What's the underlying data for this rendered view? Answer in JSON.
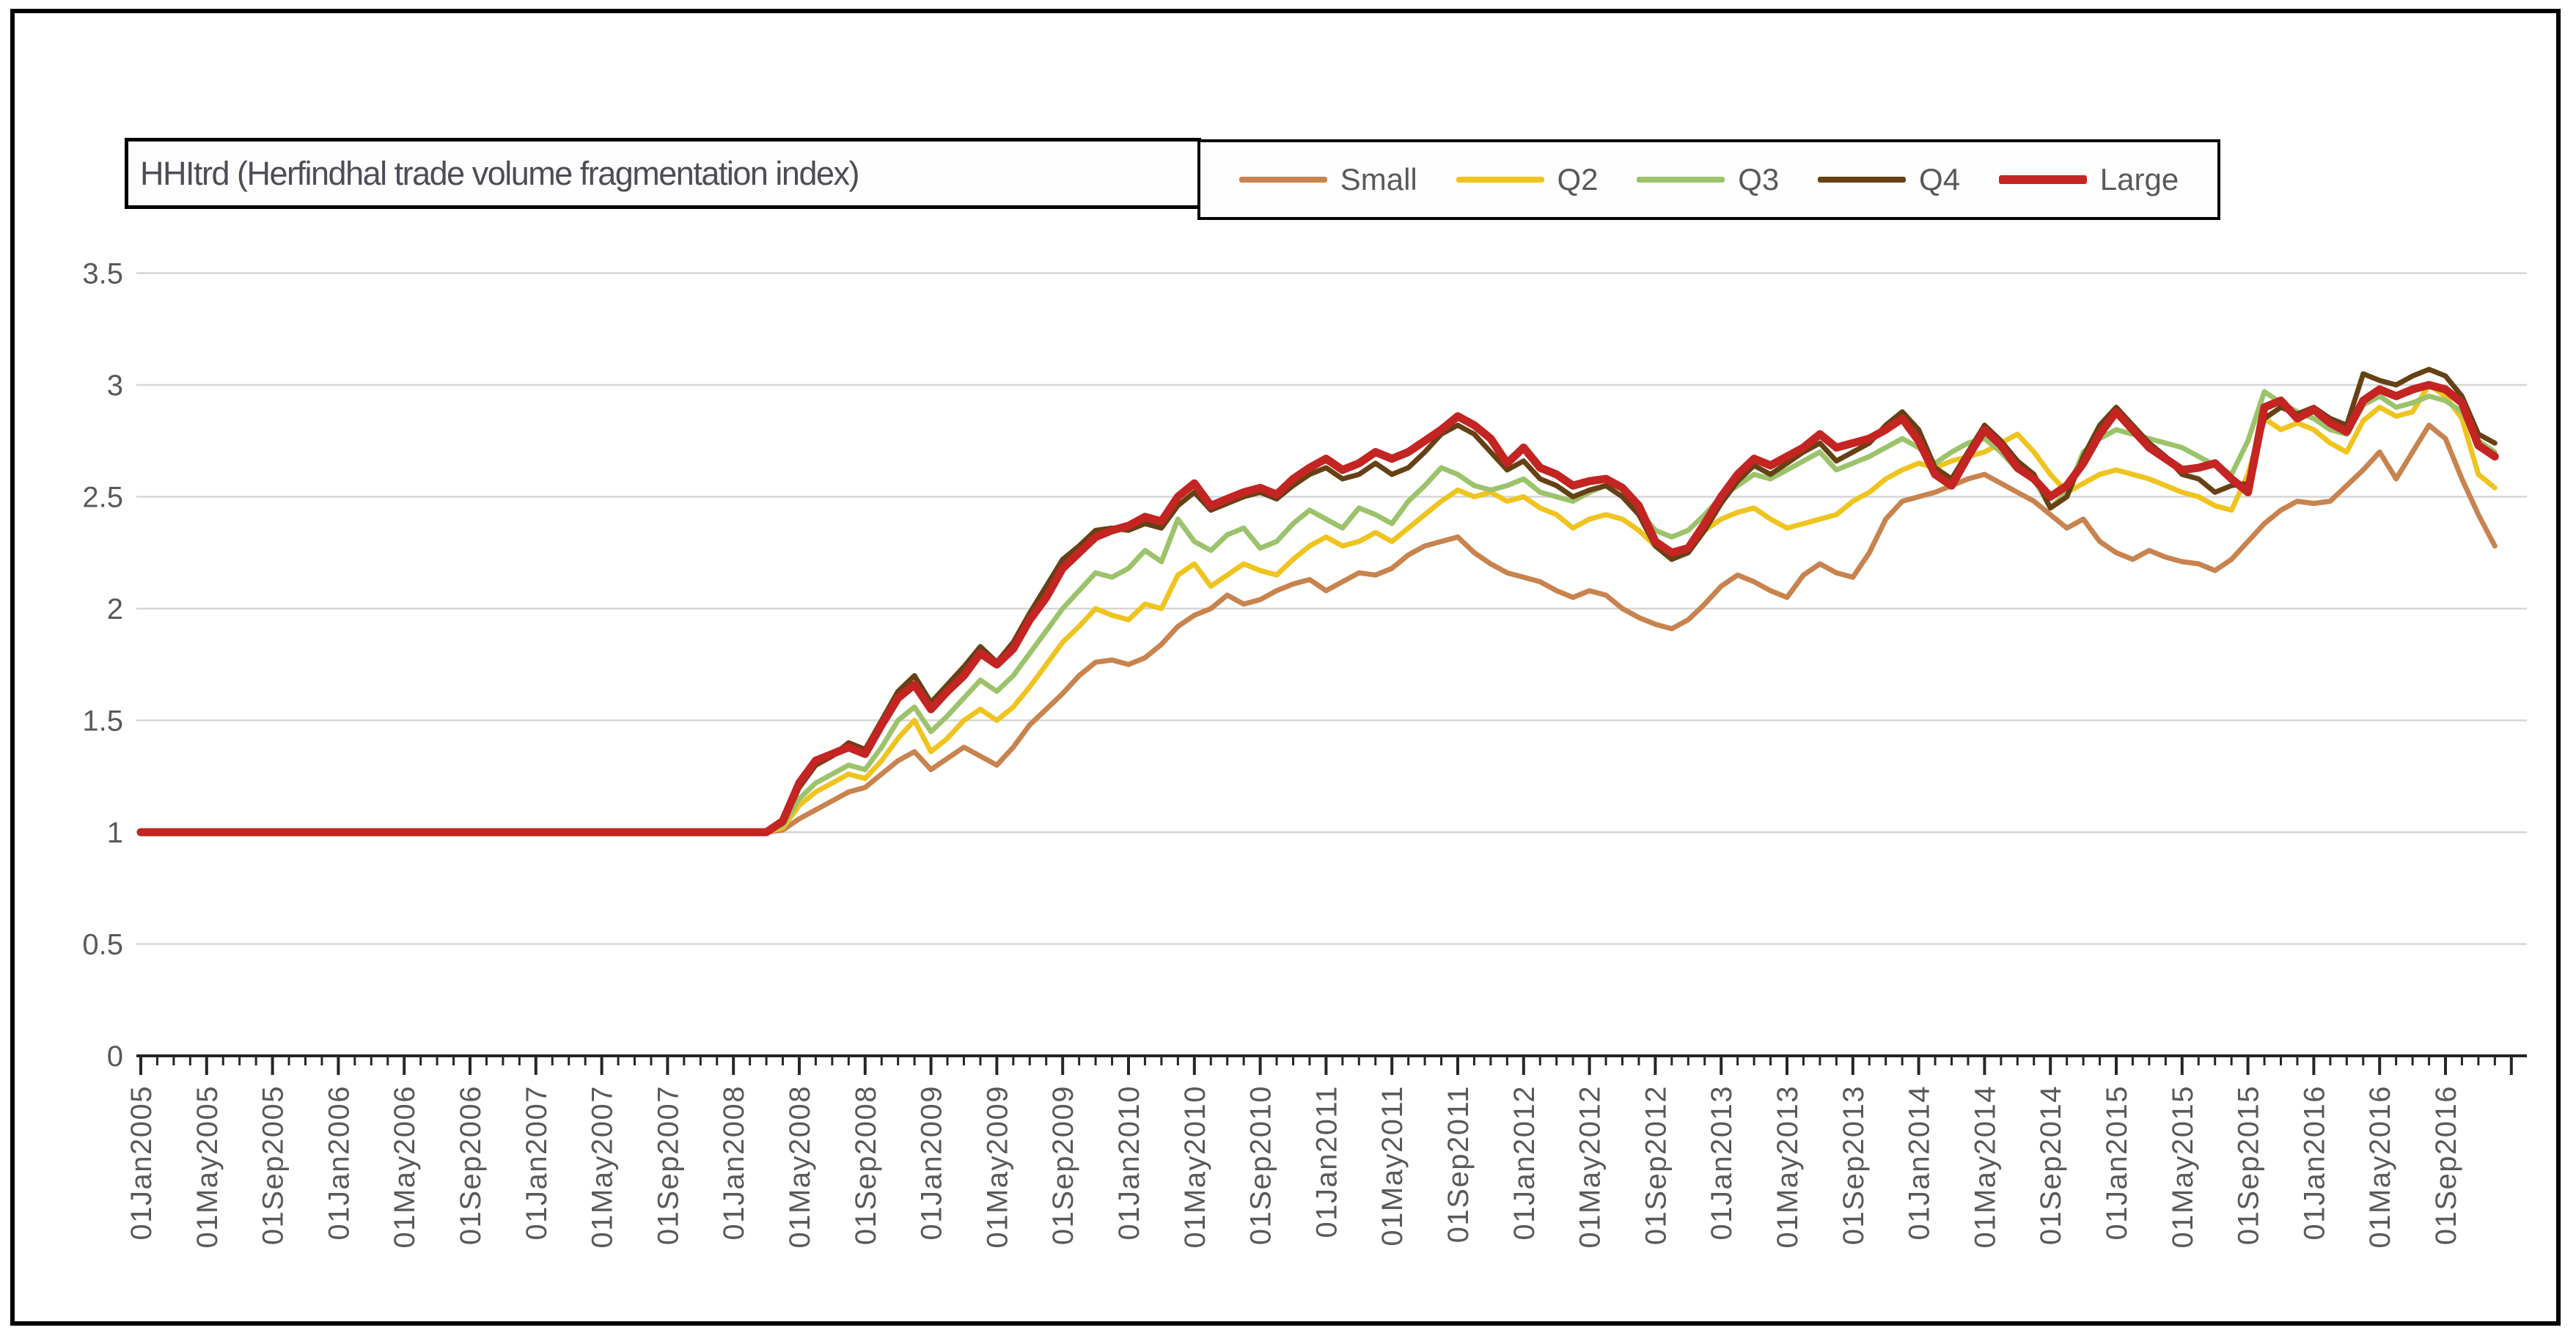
{
  "title": "HHItrd (Herfindhal trade volume fragmentation index)",
  "legend": {
    "position": "top-right",
    "items": [
      {
        "label": "Small",
        "color": "#c8834e",
        "thickness": 8
      },
      {
        "label": "Q2",
        "color": "#efc41f",
        "thickness": 8
      },
      {
        "label": "Q3",
        "color": "#9cc36b",
        "thickness": 8
      },
      {
        "label": "Q4",
        "color": "#654114",
        "thickness": 8
      },
      {
        "label": "Large",
        "color": "#c42422",
        "thickness": 12
      }
    ]
  },
  "axes": {
    "y_tick_labels": [
      "3.5",
      "3",
      "2.5",
      "2",
      "1.5",
      "1",
      "0.5",
      "0"
    ],
    "y_tick_values": [
      3.5,
      3,
      2.5,
      2,
      1.5,
      1,
      0.5,
      0
    ],
    "x_tick_labels": [
      "01Jan2005",
      "01May2005",
      "01Sep2005",
      "01Jan2006",
      "01May2006",
      "01Sep2006",
      "01Jan2007",
      "01May2007",
      "01Sep2007",
      "01Jan2008",
      "01May2008",
      "01Sep2008",
      "01Jan2009",
      "01May2009",
      "01Sep2009",
      "01Jan2010",
      "01May2010",
      "01Sep2010",
      "01Jan2011",
      "01May2011",
      "01Sep2011",
      "01Jan2012",
      "01May2012",
      "01Sep2012",
      "01Jan2013",
      "01May2013",
      "01Sep2013",
      "01Jan2014",
      "01May2014",
      "01Sep2014",
      "01Jan2015",
      "01May2015",
      "01Sep2015",
      "01Jan2016",
      "01May2016",
      "01Sep2016"
    ],
    "label_color": "#595959",
    "gridline_color": "#d6d6d6",
    "axis_color": "#262626"
  },
  "chart_data": {
    "type": "line",
    "title": "HHItrd (Herfindhal trade volume fragmentation index)",
    "x_start": "01Jan2005",
    "x_step_months": 1,
    "n_points": 144,
    "x_labels_shown_every_n_months": 4,
    "ylim": [
      0,
      3.5
    ],
    "y_tick_step": 0.5,
    "grid": true,
    "legend_position": "top-right",
    "series": [
      {
        "name": "Small",
        "color": "#c8834e",
        "width": 7,
        "values": [
          1,
          1,
          1,
          1,
          1,
          1,
          1,
          1,
          1,
          1,
          1,
          1,
          1,
          1,
          1,
          1,
          1,
          1,
          1,
          1,
          1,
          1,
          1,
          1,
          1,
          1,
          1,
          1,
          1,
          1,
          1,
          1,
          1,
          1,
          1,
          1,
          1,
          1,
          1,
          1.01,
          1.06,
          1.1,
          1.14,
          1.18,
          1.2,
          1.26,
          1.32,
          1.36,
          1.28,
          1.33,
          1.38,
          1.34,
          1.3,
          1.38,
          1.48,
          1.55,
          1.62,
          1.7,
          1.76,
          1.77,
          1.75,
          1.78,
          1.84,
          1.92,
          1.97,
          2.0,
          2.06,
          2.02,
          2.04,
          2.08,
          2.11,
          2.13,
          2.08,
          2.12,
          2.16,
          2.15,
          2.18,
          2.24,
          2.28,
          2.3,
          2.32,
          2.25,
          2.2,
          2.16,
          2.14,
          2.12,
          2.08,
          2.05,
          2.08,
          2.06,
          2.0,
          1.96,
          1.93,
          1.91,
          1.95,
          2.02,
          2.1,
          2.15,
          2.12,
          2.08,
          2.05,
          2.15,
          2.2,
          2.16,
          2.14,
          2.25,
          2.4,
          2.48,
          2.5,
          2.52,
          2.55,
          2.58,
          2.6,
          2.56,
          2.52,
          2.48,
          2.42,
          2.36,
          2.4,
          2.3,
          2.25,
          2.22,
          2.26,
          2.23,
          2.21,
          2.2,
          2.17,
          2.22,
          2.3,
          2.38,
          2.44,
          2.48,
          2.47,
          2.48,
          2.55,
          2.62,
          2.7,
          2.58,
          2.7,
          2.82,
          2.76,
          2.58,
          2.42,
          2.28
        ]
      },
      {
        "name": "Q2",
        "color": "#efc41f",
        "width": 7,
        "values": [
          1,
          1,
          1,
          1,
          1,
          1,
          1,
          1,
          1,
          1,
          1,
          1,
          1,
          1,
          1,
          1,
          1,
          1,
          1,
          1,
          1,
          1,
          1,
          1,
          1,
          1,
          1,
          1,
          1,
          1,
          1,
          1,
          1,
          1,
          1,
          1,
          1,
          1,
          1,
          1.02,
          1.12,
          1.18,
          1.22,
          1.26,
          1.24,
          1.32,
          1.42,
          1.5,
          1.36,
          1.42,
          1.5,
          1.55,
          1.5,
          1.56,
          1.65,
          1.75,
          1.85,
          1.92,
          2.0,
          1.97,
          1.95,
          2.02,
          2.0,
          2.15,
          2.2,
          2.1,
          2.15,
          2.2,
          2.17,
          2.15,
          2.22,
          2.28,
          2.32,
          2.28,
          2.3,
          2.34,
          2.3,
          2.36,
          2.42,
          2.48,
          2.53,
          2.5,
          2.52,
          2.48,
          2.5,
          2.45,
          2.42,
          2.36,
          2.4,
          2.42,
          2.4,
          2.35,
          2.28,
          2.22,
          2.28,
          2.35,
          2.4,
          2.43,
          2.45,
          2.4,
          2.36,
          2.38,
          2.4,
          2.42,
          2.48,
          2.52,
          2.58,
          2.62,
          2.65,
          2.63,
          2.66,
          2.68,
          2.7,
          2.74,
          2.78,
          2.7,
          2.6,
          2.52,
          2.56,
          2.6,
          2.62,
          2.6,
          2.58,
          2.55,
          2.52,
          2.5,
          2.46,
          2.44,
          2.6,
          2.85,
          2.8,
          2.83,
          2.8,
          2.74,
          2.7,
          2.84,
          2.9,
          2.86,
          2.88,
          3.0,
          2.95,
          2.85,
          2.6,
          2.54
        ]
      },
      {
        "name": "Q3",
        "color": "#9cc36b",
        "width": 7,
        "values": [
          1,
          1,
          1,
          1,
          1,
          1,
          1,
          1,
          1,
          1,
          1,
          1,
          1,
          1,
          1,
          1,
          1,
          1,
          1,
          1,
          1,
          1,
          1,
          1,
          1,
          1,
          1,
          1,
          1,
          1,
          1,
          1,
          1,
          1,
          1,
          1,
          1,
          1,
          1,
          1.03,
          1.15,
          1.22,
          1.26,
          1.3,
          1.28,
          1.38,
          1.5,
          1.56,
          1.45,
          1.52,
          1.6,
          1.68,
          1.63,
          1.7,
          1.8,
          1.9,
          2.0,
          2.08,
          2.16,
          2.14,
          2.18,
          2.26,
          2.21,
          2.4,
          2.3,
          2.26,
          2.33,
          2.36,
          2.27,
          2.3,
          2.38,
          2.44,
          2.4,
          2.36,
          2.45,
          2.42,
          2.38,
          2.48,
          2.55,
          2.63,
          2.6,
          2.55,
          2.53,
          2.55,
          2.58,
          2.52,
          2.5,
          2.48,
          2.52,
          2.55,
          2.5,
          2.44,
          2.35,
          2.32,
          2.35,
          2.42,
          2.5,
          2.55,
          2.6,
          2.58,
          2.62,
          2.66,
          2.7,
          2.62,
          2.65,
          2.68,
          2.72,
          2.76,
          2.72,
          2.65,
          2.7,
          2.74,
          2.76,
          2.7,
          2.62,
          2.58,
          2.45,
          2.52,
          2.7,
          2.76,
          2.8,
          2.78,
          2.76,
          2.74,
          2.72,
          2.68,
          2.64,
          2.6,
          2.75,
          2.97,
          2.92,
          2.88,
          2.85,
          2.8,
          2.78,
          2.91,
          2.95,
          2.9,
          2.92,
          2.95,
          2.93,
          2.88,
          2.75,
          2.7
        ]
      },
      {
        "name": "Q4",
        "color": "#654114",
        "width": 7,
        "values": [
          1,
          1,
          1,
          1,
          1,
          1,
          1,
          1,
          1,
          1,
          1,
          1,
          1,
          1,
          1,
          1,
          1,
          1,
          1,
          1,
          1,
          1,
          1,
          1,
          1,
          1,
          1,
          1,
          1,
          1,
          1,
          1,
          1,
          1,
          1,
          1,
          1,
          1,
          1,
          1.04,
          1.2,
          1.3,
          1.34,
          1.4,
          1.37,
          1.5,
          1.63,
          1.7,
          1.58,
          1.66,
          1.74,
          1.83,
          1.76,
          1.85,
          1.98,
          2.1,
          2.22,
          2.28,
          2.35,
          2.36,
          2.35,
          2.38,
          2.36,
          2.46,
          2.52,
          2.44,
          2.47,
          2.5,
          2.52,
          2.49,
          2.55,
          2.6,
          2.63,
          2.58,
          2.6,
          2.65,
          2.6,
          2.63,
          2.7,
          2.78,
          2.82,
          2.78,
          2.7,
          2.62,
          2.66,
          2.58,
          2.55,
          2.5,
          2.53,
          2.55,
          2.5,
          2.42,
          2.28,
          2.22,
          2.25,
          2.35,
          2.47,
          2.57,
          2.64,
          2.6,
          2.65,
          2.7,
          2.74,
          2.66,
          2.7,
          2.74,
          2.82,
          2.88,
          2.8,
          2.63,
          2.58,
          2.7,
          2.82,
          2.75,
          2.66,
          2.6,
          2.45,
          2.5,
          2.68,
          2.82,
          2.9,
          2.82,
          2.74,
          2.68,
          2.6,
          2.58,
          2.52,
          2.55,
          2.56,
          2.85,
          2.9,
          2.87,
          2.9,
          2.85,
          2.82,
          3.05,
          3.02,
          3.0,
          3.04,
          3.07,
          3.04,
          2.95,
          2.78,
          2.74
        ]
      },
      {
        "name": "Large",
        "color": "#c42422",
        "width": 11,
        "values": [
          1,
          1,
          1,
          1,
          1,
          1,
          1,
          1,
          1,
          1,
          1,
          1,
          1,
          1,
          1,
          1,
          1,
          1,
          1,
          1,
          1,
          1,
          1,
          1,
          1,
          1,
          1,
          1,
          1,
          1,
          1,
          1,
          1,
          1,
          1,
          1,
          1,
          1,
          1,
          1.05,
          1.22,
          1.32,
          1.35,
          1.38,
          1.35,
          1.48,
          1.6,
          1.66,
          1.55,
          1.63,
          1.7,
          1.8,
          1.75,
          1.82,
          1.95,
          2.05,
          2.18,
          2.25,
          2.32,
          2.35,
          2.37,
          2.41,
          2.39,
          2.5,
          2.56,
          2.46,
          2.49,
          2.52,
          2.54,
          2.51,
          2.58,
          2.63,
          2.67,
          2.62,
          2.65,
          2.7,
          2.67,
          2.7,
          2.75,
          2.8,
          2.86,
          2.82,
          2.76,
          2.65,
          2.72,
          2.63,
          2.6,
          2.55,
          2.57,
          2.58,
          2.54,
          2.46,
          2.3,
          2.25,
          2.27,
          2.38,
          2.5,
          2.6,
          2.67,
          2.64,
          2.68,
          2.72,
          2.78,
          2.72,
          2.74,
          2.76,
          2.8,
          2.85,
          2.75,
          2.6,
          2.55,
          2.68,
          2.8,
          2.73,
          2.63,
          2.58,
          2.5,
          2.55,
          2.65,
          2.78,
          2.88,
          2.8,
          2.72,
          2.67,
          2.62,
          2.63,
          2.65,
          2.58,
          2.52,
          2.9,
          2.93,
          2.85,
          2.89,
          2.83,
          2.79,
          2.93,
          2.98,
          2.95,
          2.98,
          3.0,
          2.98,
          2.92,
          2.73,
          2.68
        ]
      }
    ]
  }
}
